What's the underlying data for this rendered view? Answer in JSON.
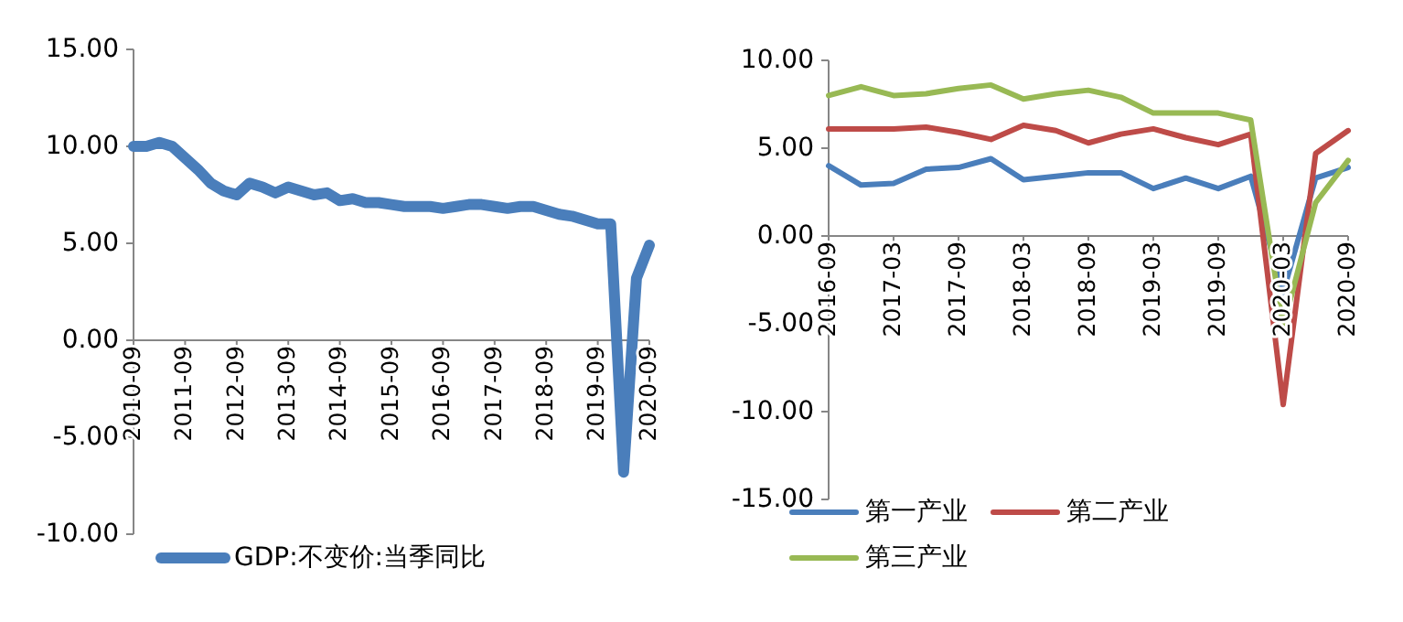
{
  "chart_data": [
    {
      "type": "line",
      "categories": [
        "2010-09",
        null,
        null,
        null,
        "2011-09",
        null,
        null,
        null,
        "2012-09",
        null,
        null,
        null,
        "2013-09",
        null,
        null,
        null,
        "2014-09",
        null,
        null,
        null,
        "2015-09",
        null,
        null,
        null,
        "2016-09",
        null,
        null,
        null,
        "2017-09",
        null,
        null,
        null,
        "2018-09",
        null,
        null,
        null,
        "2019-09",
        null,
        null,
        null,
        "2020-09"
      ],
      "series": [
        {
          "name": "GDP:不变价:当季同比",
          "color": "#4a7ebb",
          "values": [
            10.0,
            10.0,
            10.2,
            10.0,
            9.4,
            8.8,
            8.1,
            7.7,
            7.5,
            8.1,
            7.9,
            7.6,
            7.9,
            7.7,
            7.5,
            7.6,
            7.2,
            7.3,
            7.1,
            7.1,
            7.0,
            6.9,
            6.9,
            6.9,
            6.8,
            6.9,
            7.0,
            7.0,
            6.9,
            6.8,
            6.9,
            6.9,
            6.7,
            6.5,
            6.4,
            6.2,
            6.0,
            6.0,
            -6.8,
            3.2,
            4.9
          ]
        }
      ],
      "ylim": [
        -10,
        15
      ],
      "yticks": [
        {
          "value": -10,
          "label": "-10.00"
        },
        {
          "value": -5,
          "label": "-5.00"
        },
        {
          "value": 0,
          "label": "0.00"
        },
        {
          "value": 5,
          "label": "5.00"
        },
        {
          "value": 10,
          "label": "10.00"
        },
        {
          "value": 15,
          "label": "15.00"
        }
      ],
      "legend": "bottom"
    },
    {
      "type": "line",
      "categories": [
        "2016-09",
        null,
        "2017-03",
        null,
        "2017-09",
        null,
        "2018-03",
        null,
        "2018-09",
        null,
        "2019-03",
        null,
        "2019-09",
        null,
        "2020-03",
        null,
        "2020-09"
      ],
      "series": [
        {
          "name": "第一产业",
          "color": "#4a7ebb",
          "values": [
            4.0,
            2.9,
            3.0,
            3.8,
            3.9,
            4.4,
            3.2,
            3.4,
            3.6,
            3.6,
            2.7,
            3.3,
            2.7,
            3.4,
            -3.2,
            3.3,
            3.9
          ]
        },
        {
          "name": "第二产业",
          "color": "#be4b48",
          "values": [
            6.1,
            6.1,
            6.1,
            6.2,
            5.9,
            5.5,
            6.3,
            6.0,
            5.3,
            5.8,
            6.1,
            5.6,
            5.2,
            5.8,
            -9.6,
            4.7,
            6.0
          ]
        },
        {
          "name": "第三产业",
          "color": "#98b954",
          "values": [
            8.0,
            8.5,
            8.0,
            8.1,
            8.4,
            8.6,
            7.8,
            8.1,
            8.3,
            7.9,
            7.0,
            7.0,
            7.0,
            6.6,
            -5.2,
            1.9,
            4.3
          ]
        }
      ],
      "ylim": [
        -15,
        10
      ],
      "yticks": [
        {
          "value": -15,
          "label": "-15.00"
        },
        {
          "value": -10,
          "label": "-10.00"
        },
        {
          "value": -5,
          "label": "-5.00"
        },
        {
          "value": 0,
          "label": "0.00"
        },
        {
          "value": 5,
          "label": "5.00"
        },
        {
          "value": 10,
          "label": "10.00"
        }
      ],
      "legend": "bottom"
    }
  ]
}
